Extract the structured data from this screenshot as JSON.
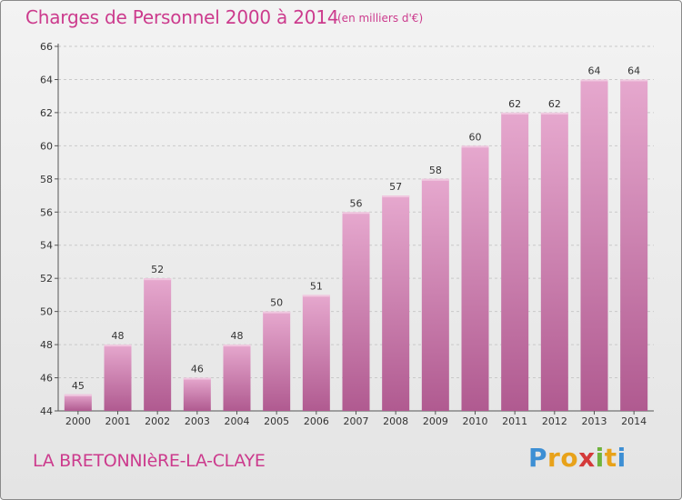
{
  "header": {
    "title": "Charges de Personnel 2000 à 2014",
    "unit_note": "(en milliers d'€)"
  },
  "footer": {
    "commune": "LA BRETONNIèRE-LA-CLAYE",
    "logo_letters": [
      "P",
      "r",
      "o",
      "x",
      "i",
      "t",
      "i"
    ],
    "logo_colors": [
      "#3d8fd4",
      "#e8a21a",
      "#e8a21a",
      "#d43a3a",
      "#6fb33c",
      "#e8a21a",
      "#3d8fd4"
    ]
  },
  "chart_data": {
    "type": "bar",
    "title": "Charges de Personnel 2000 à 2014",
    "subtitle": "(en milliers d'€)",
    "xlabel": "",
    "ylabel": "",
    "categories": [
      "2000",
      "2001",
      "2002",
      "2003",
      "2004",
      "2005",
      "2006",
      "2007",
      "2008",
      "2009",
      "2010",
      "2011",
      "2012",
      "2013",
      "2014"
    ],
    "values": [
      45,
      48,
      52,
      46,
      48,
      50,
      51,
      56,
      57,
      58,
      60,
      62,
      62,
      64,
      64
    ],
    "ylim": [
      44,
      66
    ],
    "yticks": [
      44,
      46,
      48,
      50,
      52,
      54,
      56,
      58,
      60,
      62,
      64,
      66
    ],
    "grid": true,
    "bar_color": "#cc6da6",
    "grid_color": "#c9c9c9"
  }
}
